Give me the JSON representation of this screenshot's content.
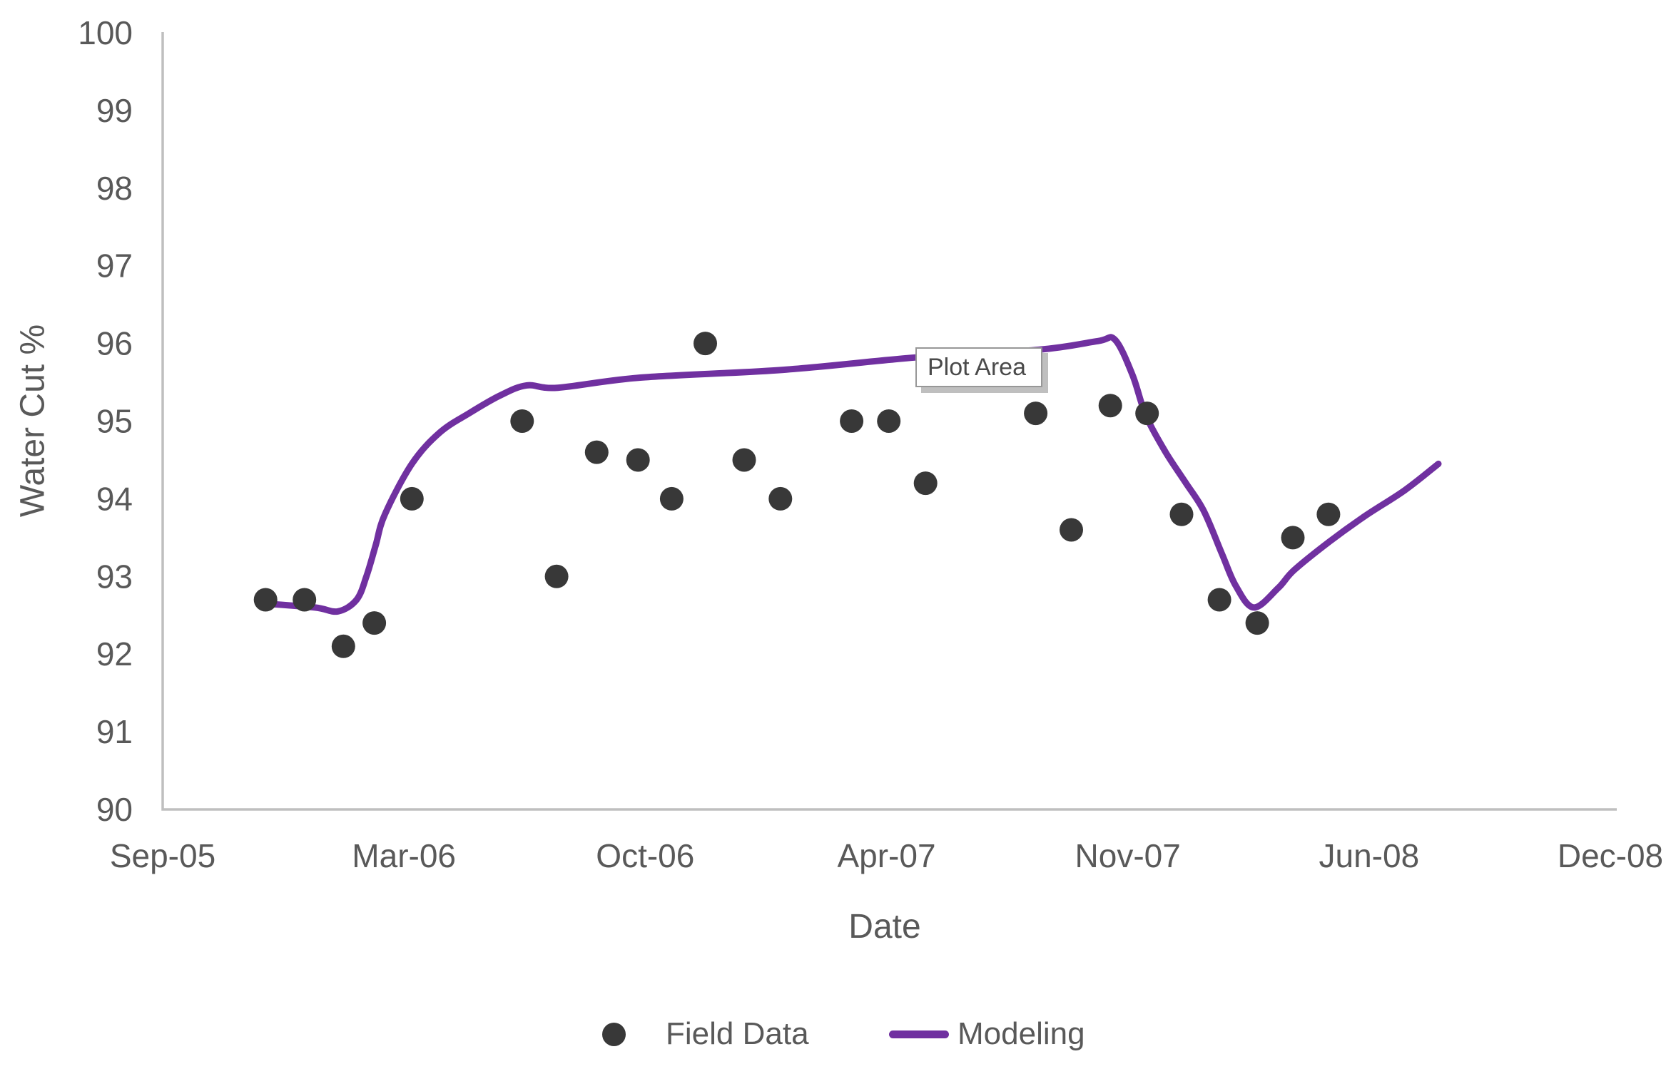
{
  "chart_data": {
    "type": "scatter",
    "title": "",
    "xlabel": "Date",
    "ylabel": "Water Cut %",
    "ylim": [
      90,
      100
    ],
    "y_ticks": [
      100,
      99,
      98,
      97,
      96,
      95,
      94,
      93,
      92,
      91,
      90
    ],
    "x_ticks": [
      {
        "label": "Sep-05",
        "month_index": 0
      },
      {
        "label": "Mar-06",
        "month_index": 6
      },
      {
        "label": "Oct-06",
        "month_index": 13
      },
      {
        "label": "Apr-07",
        "month_index": 19
      },
      {
        "label": "Nov-07",
        "month_index": 26
      },
      {
        "label": "Jun-08",
        "month_index": 33
      },
      {
        "label": "Dec-08",
        "month_index": 39
      }
    ],
    "legend_position": "bottom",
    "grid": false,
    "plot_area_tooltip": "Plot Area",
    "colors": {
      "field_data": "#383838",
      "modeling": "#7030A0",
      "axis_line": "#BFBFBF",
      "label_text": "#595959"
    },
    "series": [
      {
        "name": "Field Data",
        "type": "scatter",
        "color": "#383838",
        "points": [
          {
            "date": "2005-11-18",
            "value": 92.7
          },
          {
            "date": "2005-12-17",
            "value": 92.7
          },
          {
            "date": "2006-01-16",
            "value": 92.1
          },
          {
            "date": "2006-02-09",
            "value": 92.4
          },
          {
            "date": "2006-03-08",
            "value": 94.0
          },
          {
            "date": "2006-06-14",
            "value": 95.0
          },
          {
            "date": "2006-07-14",
            "value": 93.0
          },
          {
            "date": "2006-08-19",
            "value": 94.6
          },
          {
            "date": "2006-09-25",
            "value": 94.5
          },
          {
            "date": "2006-10-21",
            "value": 94.0
          },
          {
            "date": "2006-11-16",
            "value": 96.0
          },
          {
            "date": "2006-12-15",
            "value": 94.5
          },
          {
            "date": "2007-01-12",
            "value": 94.0
          },
          {
            "date": "2007-03-05",
            "value": 95.0
          },
          {
            "date": "2007-04-03",
            "value": 95.0
          },
          {
            "date": "2007-05-05",
            "value": 94.2
          },
          {
            "date": "2007-08-11",
            "value": 95.1
          },
          {
            "date": "2007-09-12",
            "value": 93.6
          },
          {
            "date": "2007-10-16",
            "value": 95.2
          },
          {
            "date": "2007-11-18",
            "value": 95.1
          },
          {
            "date": "2007-12-18",
            "value": 93.8
          },
          {
            "date": "2008-01-21",
            "value": 92.7
          },
          {
            "date": "2008-02-24",
            "value": 92.4
          },
          {
            "date": "2008-03-25",
            "value": 93.5
          },
          {
            "date": "2008-04-26",
            "value": 93.8
          }
        ]
      },
      {
        "name": "Modeling",
        "type": "line",
        "color": "#7030A0",
        "points": [
          {
            "date": "2005-11-18",
            "value": 92.65
          },
          {
            "date": "2005-12-25",
            "value": 92.6
          },
          {
            "date": "2006-01-12",
            "value": 92.55
          },
          {
            "date": "2006-01-26",
            "value": 92.7
          },
          {
            "date": "2006-02-03",
            "value": 93.0
          },
          {
            "date": "2006-02-10",
            "value": 93.4
          },
          {
            "date": "2006-02-17",
            "value": 93.8
          },
          {
            "date": "2006-03-08",
            "value": 94.45
          },
          {
            "date": "2006-04-02",
            "value": 94.85
          },
          {
            "date": "2006-04-28",
            "value": 95.1
          },
          {
            "date": "2006-05-25",
            "value": 95.33
          },
          {
            "date": "2006-06-18",
            "value": 95.46
          },
          {
            "date": "2006-07-15",
            "value": 95.43
          },
          {
            "date": "2006-09-27",
            "value": 95.56
          },
          {
            "date": "2007-01-14",
            "value": 95.66
          },
          {
            "date": "2007-04-27",
            "value": 95.82
          },
          {
            "date": "2007-08-14",
            "value": 95.92
          },
          {
            "date": "2007-10-05",
            "value": 96.03
          },
          {
            "date": "2007-10-20",
            "value": 96.05
          },
          {
            "date": "2007-11-05",
            "value": 95.6
          },
          {
            "date": "2007-11-17",
            "value": 95.07
          },
          {
            "date": "2007-12-04",
            "value": 94.6
          },
          {
            "date": "2007-12-21",
            "value": 94.22
          },
          {
            "date": "2008-01-07",
            "value": 93.85
          },
          {
            "date": "2008-01-23",
            "value": 93.3
          },
          {
            "date": "2008-02-05",
            "value": 92.88
          },
          {
            "date": "2008-02-21",
            "value": 92.6
          },
          {
            "date": "2008-03-12",
            "value": 92.85
          },
          {
            "date": "2008-03-26",
            "value": 93.08
          },
          {
            "date": "2008-04-27",
            "value": 93.45
          },
          {
            "date": "2008-05-28",
            "value": 93.78
          },
          {
            "date": "2008-06-28",
            "value": 94.11
          },
          {
            "date": "2008-07-23",
            "value": 94.45
          }
        ]
      }
    ]
  }
}
